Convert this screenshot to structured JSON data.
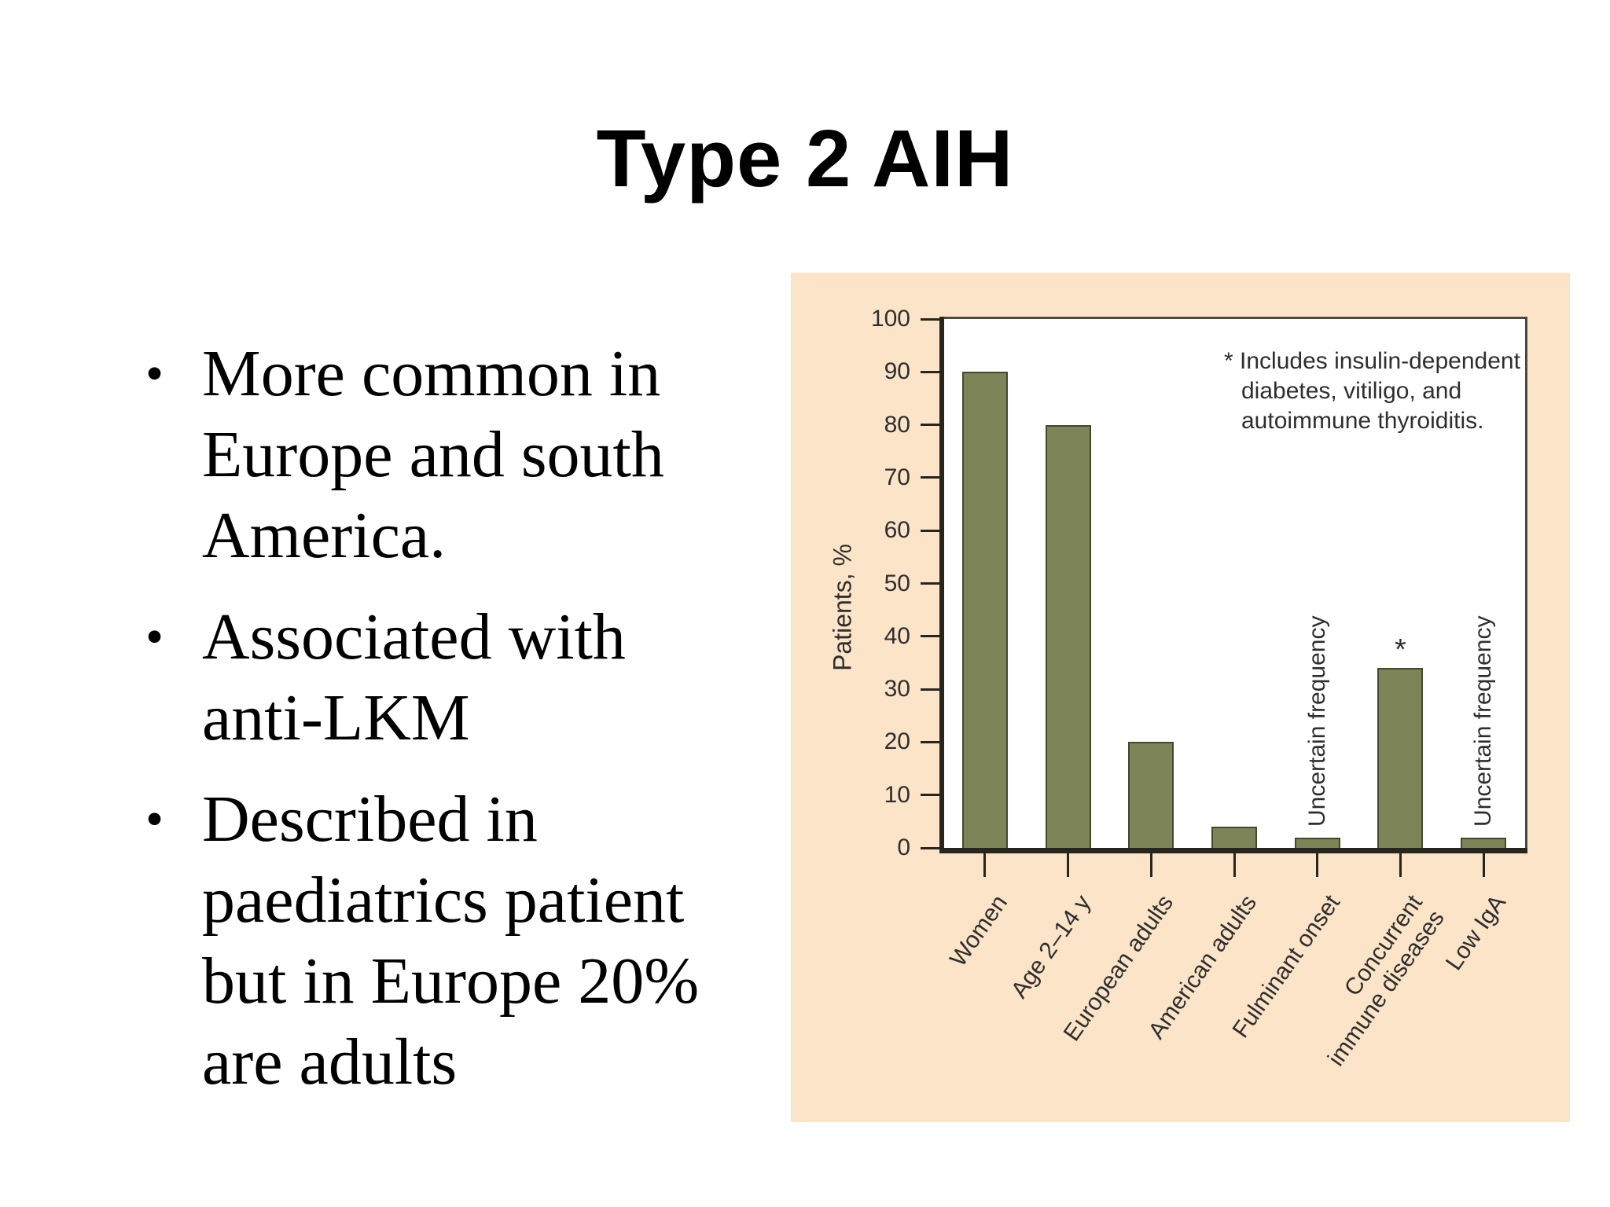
{
  "slide": {
    "title": "Type 2 AIH",
    "bullet_char": "•",
    "bullets": [
      {
        "lines": [
          "More common in",
          "Europe and south",
          "America."
        ]
      },
      {
        "lines": [
          "Associated with",
          "anti-LKM"
        ]
      },
      {
        "lines": [
          "Described in",
          "paediatrics patient",
          "but in Europe 20%",
          "are adults"
        ]
      }
    ]
  },
  "chart_data": {
    "type": "bar",
    "title": "",
    "xlabel": "",
    "ylabel": "Patients, %",
    "ylim": [
      0,
      100
    ],
    "ytick_step": 10,
    "grid": false,
    "legend": "none",
    "categories": [
      "Women",
      "Age 2–14 y",
      "European adults",
      "American adults",
      "Fulminant onset",
      "Concurrent\nimmune diseases",
      "Low IgA"
    ],
    "values": [
      90,
      80,
      20,
      4,
      2,
      34,
      2
    ],
    "bar_annotations": [
      "",
      "",
      "",
      "",
      "Uncertain frequency",
      "*",
      "Uncertain frequency"
    ],
    "note": "* Includes insulin-dependent diabetes, vitiligo, and autoimmune thyroiditis.",
    "note_lines": [
      "* Includes insulin-dependent",
      "diabetes, vitiligo, and",
      "autoimmune thyroiditis."
    ],
    "colors": {
      "panel_bg": "#fce4c8",
      "plot_bg": "#ffffff",
      "bar_fill": "#7d8458",
      "bar_border": "#454a2c",
      "axis": "#26261e",
      "text": "#2e2e2e"
    }
  }
}
